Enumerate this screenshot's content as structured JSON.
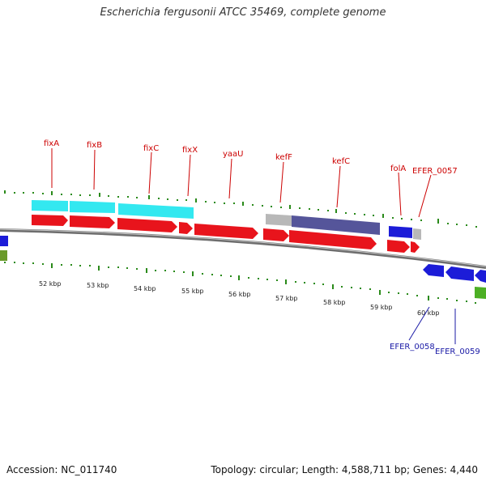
{
  "title": "Escherichia fergusonii ATCC 35469, complete genome",
  "accession": "Accession: NC_011740",
  "summary": "Topology: circular; Length: 4,588,711 bp; Genes: 4,440",
  "colors": {
    "red_gene": "#e8141c",
    "cyan_gene": "#33e8f0",
    "blue_gene": "#1c1cd8",
    "purple_gene": "#55559a",
    "gray_gene": "#b8b8b8",
    "green_gene": "#4caf24",
    "olive_gene": "#6a9a2a",
    "tick": "#2a8a1a",
    "backbone": "#888888",
    "red_label": "#cc0000",
    "blue_label": "#1a1aa6"
  },
  "kbp_labels": [
    "52 kbp",
    "53 kbp",
    "54 kbp",
    "55 kbp",
    "56 kbp",
    "57 kbp",
    "58 kbp",
    "59 kbp",
    "60 kbp"
  ],
  "gene_labels_top": [
    "fixA",
    "fixB",
    "fixC",
    "fixX",
    "yaaU",
    "kefF",
    "kefC",
    "folA",
    "EFER_0057"
  ],
  "gene_labels_bottom": [
    "EFER_0058",
    "EFER_0059"
  ]
}
